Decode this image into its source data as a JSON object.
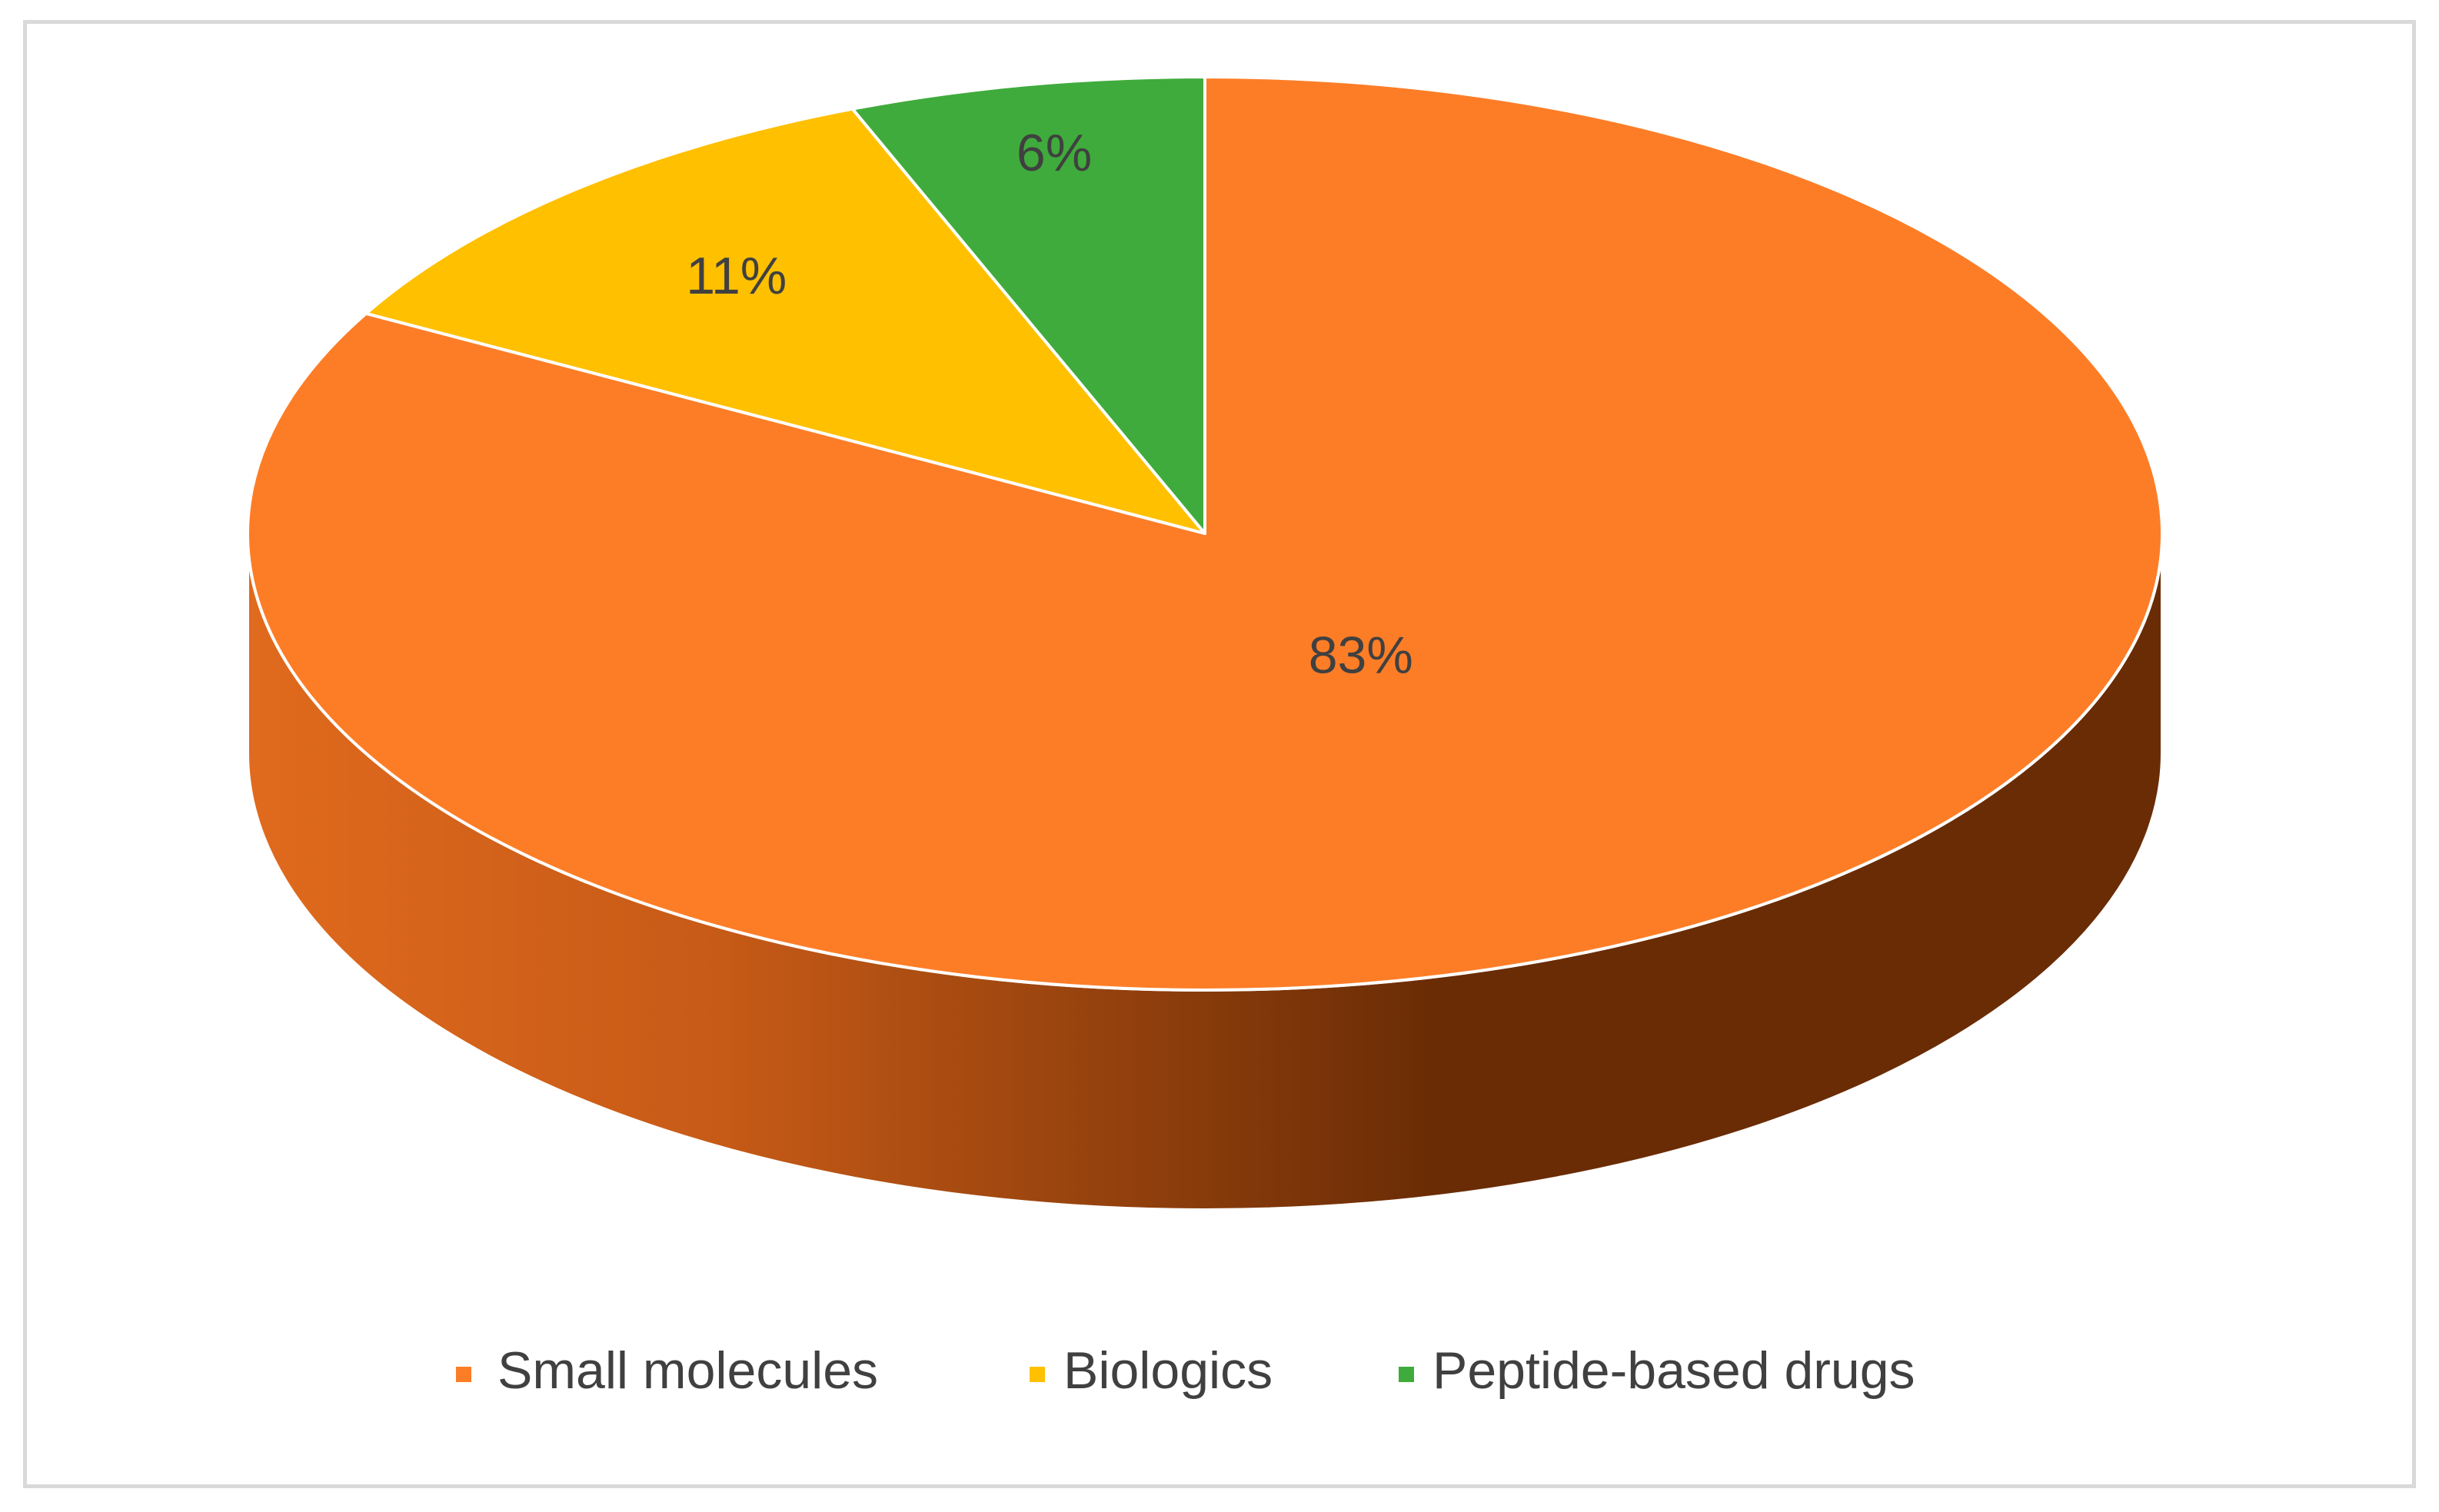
{
  "chart_data": {
    "type": "pie",
    "style": "3d",
    "title": "",
    "categories": [
      "Small molecules",
      "Biologics",
      "Peptide-based drugs"
    ],
    "values": [
      83,
      11,
      6
    ],
    "unit": "%",
    "labels": [
      "83%",
      "11%",
      "6%"
    ],
    "colors": [
      "#fd7d27",
      "#ffc000",
      "#3fab3c"
    ],
    "side_colors": {
      "light": "#e06a1d",
      "dark": "#6a2c05"
    },
    "legend": "bottom"
  }
}
